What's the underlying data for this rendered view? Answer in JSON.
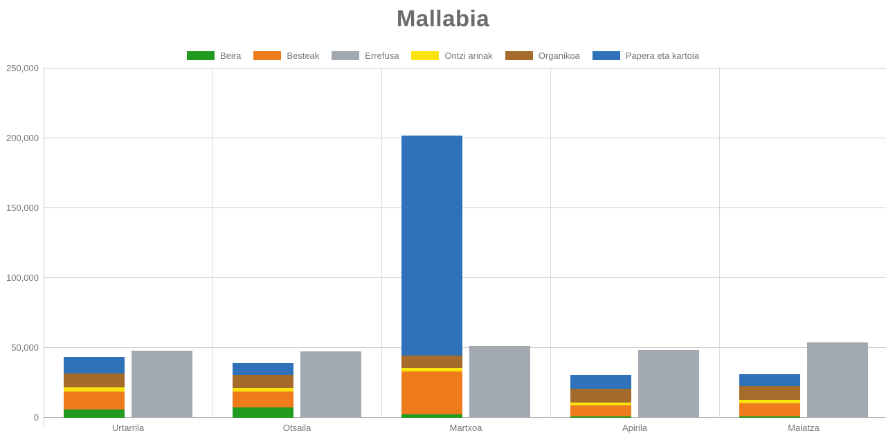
{
  "page": {
    "background": "#ffffff"
  },
  "chart_data": {
    "type": "bar",
    "title": "Mallabia",
    "stacked": true,
    "legend_position": "top",
    "grid": true,
    "categories": [
      "Urtarrila",
      "Otsaila",
      "Martxoa",
      "Apirila",
      "Maiatza"
    ],
    "legend": [
      {
        "label": "Beira",
        "color": "#219a1f"
      },
      {
        "label": "Besteak",
        "color": "#ee7c1d"
      },
      {
        "label": "Errefusa",
        "color": "#a3a9b1"
      },
      {
        "label": "Ontzi arinak",
        "color": "#fbe40d"
      },
      {
        "label": "Organikoa",
        "color": "#a56b2b"
      },
      {
        "label": "Papera eta kartoia",
        "color": "#2f72b9"
      }
    ],
    "stack_series": [
      {
        "name": "Beira",
        "color": "#219a1f",
        "values": [
          6200,
          7400,
          2500,
          1000,
          1100
        ]
      },
      {
        "name": "Besteak",
        "color": "#ee7c1d",
        "values": [
          12800,
          11400,
          30700,
          7700,
          9300
        ]
      },
      {
        "name": "Ontzi arinak",
        "color": "#fbe40d",
        "values": [
          2900,
          2500,
          2500,
          2400,
          2500
        ]
      },
      {
        "name": "Organikoa",
        "color": "#a56b2b",
        "values": [
          9800,
          9400,
          8900,
          9800,
          9900
        ]
      },
      {
        "name": "Papera eta kartoia",
        "color": "#2f72b9",
        "values": [
          11900,
          8400,
          157400,
          9800,
          8400
        ]
      }
    ],
    "side_series": {
      "name": "Errefusa",
      "color": "#a3a9b1",
      "values": [
        48200,
        47600,
        51500,
        48300,
        54000
      ]
    },
    "stack_totals": [
      43600,
      39100,
      202000,
      30700,
      31200
    ],
    "y_axis": {
      "min": 0,
      "max": 250000,
      "ticks": [
        {
          "label": "0",
          "value": 0
        },
        {
          "label": "50,000",
          "value": 50000
        },
        {
          "label": "100,000",
          "value": 100000
        },
        {
          "label": "150,000",
          "value": 150000
        },
        {
          "label": "200,000",
          "value": 200000
        },
        {
          "label": "250,000",
          "value": 250000
        }
      ]
    }
  }
}
